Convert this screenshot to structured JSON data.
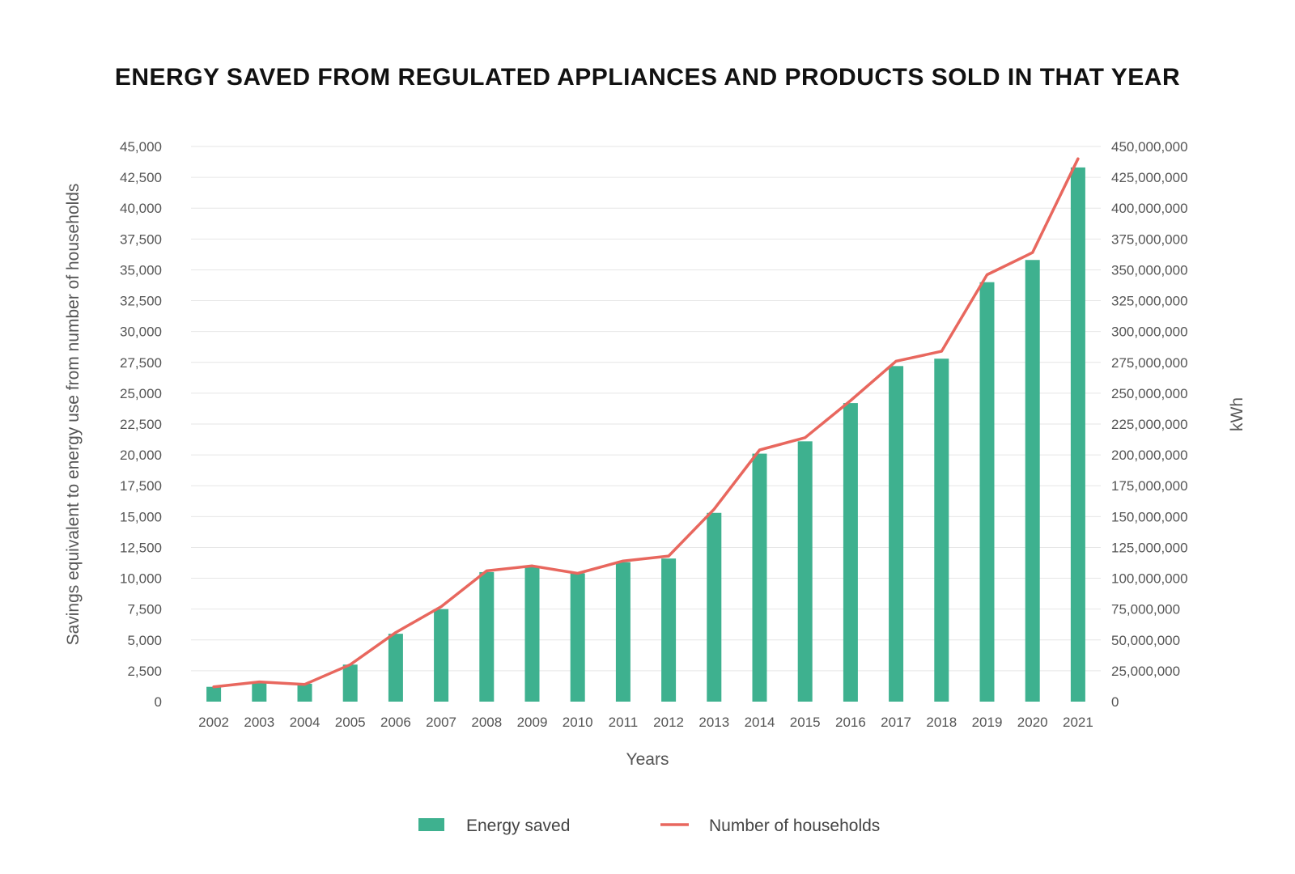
{
  "chart_data": {
    "type": "bar+line",
    "title": "ENERGY SAVED FROM REGULATED APPLIANCES AND PRODUCTS SOLD IN THAT YEAR",
    "xlabel": "Years",
    "ylabel_left": "Savings equivalent to energy use from number of households",
    "ylabel_right": "kWh",
    "categories": [
      "2002",
      "2003",
      "2004",
      "2005",
      "2006",
      "2007",
      "2008",
      "2009",
      "2010",
      "2011",
      "2012",
      "2013",
      "2014",
      "2015",
      "2016",
      "2017",
      "2018",
      "2019",
      "2020",
      "2021"
    ],
    "series": [
      {
        "name": "Energy saved",
        "type": "bar",
        "axis": "left",
        "color": "#3eb18f",
        "values": [
          1200,
          1600,
          1450,
          3000,
          5500,
          7500,
          10500,
          10900,
          10400,
          11300,
          11600,
          15300,
          20100,
          21100,
          24200,
          27200,
          27800,
          34000,
          35800,
          43300
        ]
      },
      {
        "name": "Number of households",
        "type": "line",
        "axis": "right",
        "color": "#e8675e",
        "values": [
          12000000,
          16000000,
          14000000,
          30000000,
          56000000,
          77000000,
          106000000,
          110000000,
          104000000,
          114000000,
          118000000,
          156000000,
          204000000,
          214000000,
          244000000,
          276000000,
          284000000,
          346000000,
          364000000,
          440000000
        ]
      }
    ],
    "ylim_left": [
      0,
      45000
    ],
    "ylim_right": [
      0,
      450000000
    ],
    "yticks_left": [
      "0",
      "2,500",
      "5,000",
      "7,500",
      "10,000",
      "12,500",
      "15,000",
      "17,500",
      "20,000",
      "22,500",
      "25,000",
      "27,500",
      "30,000",
      "32,500",
      "35,000",
      "37,500",
      "40,000",
      "42,500",
      "45,000"
    ],
    "yticks_right": [
      "0",
      "25,000,000",
      "50,000,000",
      "75,000,000",
      "100,000,000",
      "125,000,000",
      "150,000,000",
      "175,000,000",
      "200,000,000",
      "225,000,000",
      "250,000,000",
      "275,000,000",
      "300,000,000",
      "325,000,000",
      "350,000,000",
      "375,000,000",
      "400,000,000",
      "425,000,000",
      "450,000,000"
    ],
    "grid": true,
    "legend_position": "bottom-center"
  }
}
